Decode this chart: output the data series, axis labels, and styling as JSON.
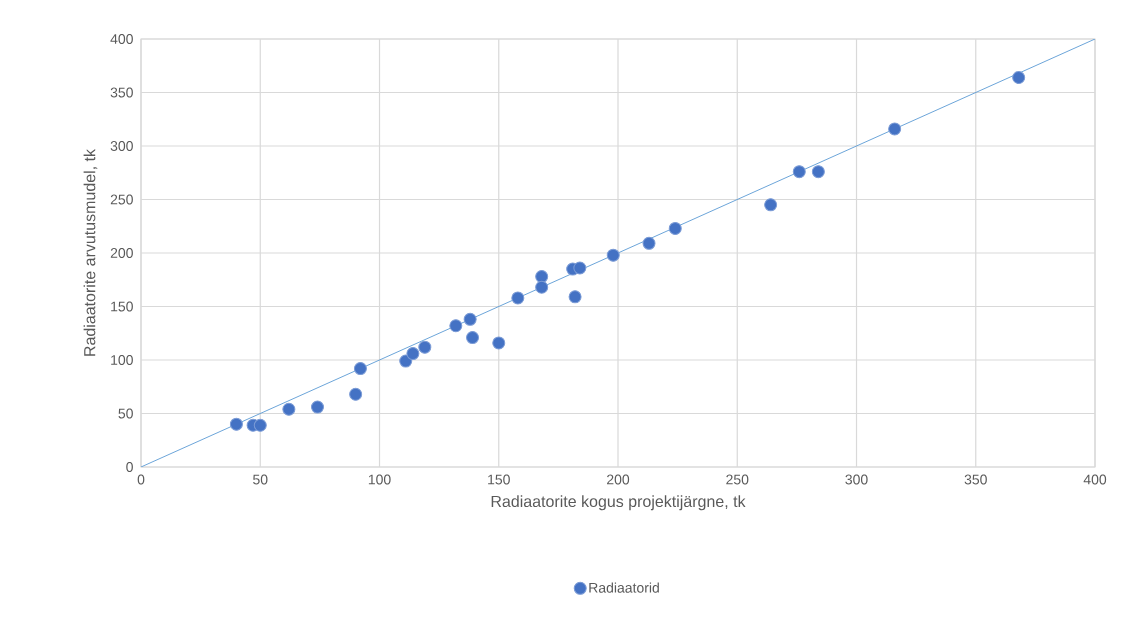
{
  "chart_data": {
    "type": "scatter",
    "xlabel": "Radiaatorite kogus projektijärgne, tk",
    "ylabel": "Radiaatorite arvutusmudel, tk",
    "xlim": [
      0,
      400
    ],
    "ylim": [
      0,
      400
    ],
    "xticks": [
      0,
      50,
      100,
      150,
      200,
      250,
      300,
      350,
      400
    ],
    "yticks": [
      0,
      50,
      100,
      150,
      200,
      250,
      300,
      350,
      400
    ],
    "grid": true,
    "legend": "bottom",
    "marker": "circle",
    "series": [
      {
        "name": "Radiaatorid",
        "color": "#4472c4",
        "x": [
          40,
          47,
          50,
          62,
          74,
          90,
          92,
          111,
          114,
          119,
          132,
          138,
          139,
          150,
          158,
          168,
          168,
          182,
          181,
          184,
          198,
          213,
          224,
          264,
          276,
          284,
          316,
          368
        ],
        "values": [
          40,
          39,
          39,
          54,
          56,
          68,
          92,
          99,
          106,
          112,
          132,
          138,
          121,
          116,
          158,
          178,
          168,
          159,
          185,
          186,
          198,
          209,
          223,
          245,
          276,
          276,
          316,
          364
        ]
      },
      {
        "type": "line",
        "color": "#5b9bd5",
        "x": [
          0,
          400
        ],
        "values": [
          0,
          400
        ],
        "marker": "none",
        "line_style": "solid"
      }
    ]
  }
}
